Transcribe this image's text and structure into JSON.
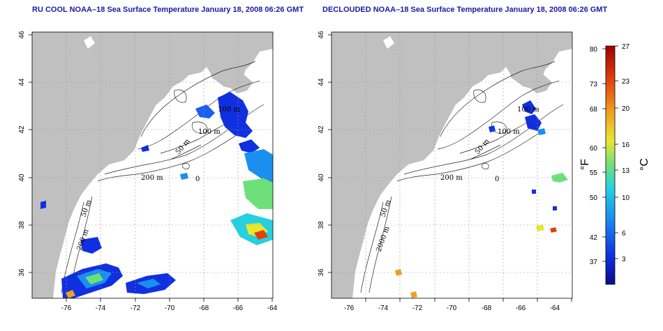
{
  "panels": [
    {
      "id": "ru-cool",
      "title": "RU COOL NOAA–18 Sea Surface Temperature January 18, 2008 06:26 GMT",
      "contour_labels": [
        "100 m",
        "100 m",
        "50 m",
        "200 m",
        "50 m",
        "200 m",
        "0"
      ]
    },
    {
      "id": "declouded",
      "title": "DECLOUDED NOAA–18 Sea Surface Temperature January 18, 2008 06:26 GMT",
      "contour_labels": [
        "100 m",
        "100 m",
        "50 m",
        "200 m",
        "50 m",
        "2000 m",
        "0"
      ]
    }
  ],
  "x_ticks": [
    "-76",
    "-74",
    "-72",
    "-70",
    "-68",
    "-66",
    "-64"
  ],
  "y_ticks": [
    "46",
    "44",
    "42",
    "40",
    "38",
    "36"
  ],
  "colorbar": {
    "fahrenheit_label": "°F",
    "celsius_label": "°C",
    "fahrenheit_ticks": [
      "80",
      "73",
      "68",
      "60",
      "55",
      "50",
      "42",
      "37"
    ],
    "celsius_ticks": [
      "27",
      "23",
      "20",
      "16",
      "13",
      "10",
      "6",
      "3"
    ]
  },
  "colors": {
    "land": "#c0c0c0",
    "ocean": "#ffffff",
    "title": "#1a1aa6",
    "gradient": [
      "#0b0b8f",
      "#1030e0",
      "#1a8ff0",
      "#25d0e0",
      "#6ee07a",
      "#e8e830",
      "#f0a020",
      "#e04010",
      "#a00000"
    ]
  }
}
